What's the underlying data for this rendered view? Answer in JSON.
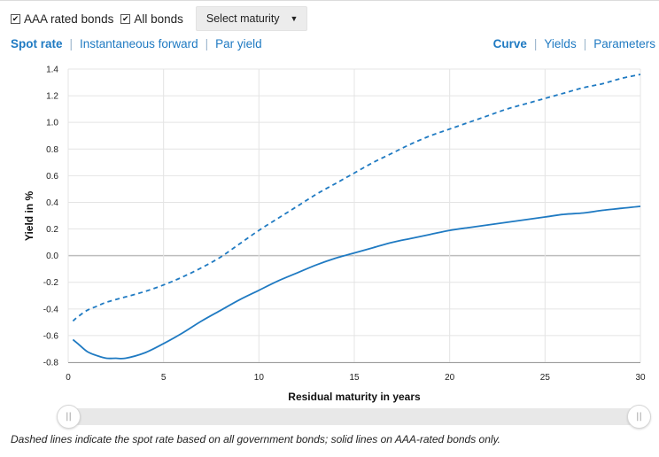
{
  "controls": {
    "checkbox_aaa": {
      "label": "AAA rated bonds",
      "checked": true
    },
    "checkbox_all": {
      "label": "All bonds",
      "checked": true
    },
    "select_maturity": {
      "value": "Select maturity",
      "caret": "▼"
    }
  },
  "tabs_left": [
    {
      "label": "Spot rate",
      "active": true
    },
    {
      "label": "Instantaneous forward",
      "active": false
    },
    {
      "label": "Par yield",
      "active": false
    }
  ],
  "tabs_right": [
    {
      "label": "Curve",
      "active": true
    },
    {
      "label": "Yields",
      "active": false
    },
    {
      "label": "Parameters",
      "active": false
    }
  ],
  "chart_data": {
    "type": "line",
    "xlabel": "Residual maturity in years",
    "ylabel": "Yield in %",
    "xlim": [
      0,
      30
    ],
    "ylim": [
      -0.8,
      1.4
    ],
    "x_ticks": [
      0,
      5,
      10,
      15,
      20,
      25,
      30
    ],
    "y_ticks": [
      -0.8,
      -0.6,
      -0.4,
      -0.2,
      0.0,
      0.2,
      0.4,
      0.6,
      0.8,
      1.0,
      1.2,
      1.4
    ],
    "y_tick_labels": [
      "-0.8",
      "-0.6",
      "-0.4",
      "-0.2",
      "0.0",
      "0.2",
      "0.4",
      "0.6",
      "0.8",
      "1.0",
      "1.2",
      "1.4"
    ],
    "grid": true,
    "line_color": "#1f7ac2",
    "series": [
      {
        "style": "dashed",
        "x": [
          0.25,
          0.5,
          1,
          1.5,
          2,
          3,
          4,
          5,
          6,
          7,
          8,
          9,
          10,
          11,
          12,
          13,
          14,
          15,
          16,
          17,
          18,
          19,
          20,
          21,
          22,
          23,
          24,
          25,
          26,
          27,
          28,
          29,
          30
        ],
        "y": [
          -0.49,
          -0.46,
          -0.41,
          -0.38,
          -0.35,
          -0.31,
          -0.27,
          -0.22,
          -0.16,
          -0.09,
          -0.01,
          0.09,
          0.19,
          0.28,
          0.37,
          0.46,
          0.54,
          0.62,
          0.7,
          0.77,
          0.84,
          0.9,
          0.95,
          1.0,
          1.05,
          1.1,
          1.14,
          1.18,
          1.22,
          1.26,
          1.29,
          1.33,
          1.36
        ]
      },
      {
        "style": "solid",
        "x": [
          0.25,
          0.5,
          1,
          1.5,
          2,
          2.5,
          3,
          4,
          5,
          6,
          7,
          8,
          9,
          10,
          11,
          12,
          13,
          14,
          15,
          16,
          17,
          18,
          19,
          20,
          21,
          22,
          23,
          24,
          25,
          26,
          27,
          28,
          29,
          30
        ],
        "y": [
          -0.63,
          -0.66,
          -0.72,
          -0.75,
          -0.77,
          -0.77,
          -0.77,
          -0.73,
          -0.66,
          -0.58,
          -0.49,
          -0.41,
          -0.33,
          -0.26,
          -0.19,
          -0.13,
          -0.07,
          -0.02,
          0.02,
          0.06,
          0.1,
          0.13,
          0.16,
          0.19,
          0.21,
          0.23,
          0.25,
          0.27,
          0.29,
          0.31,
          0.32,
          0.34,
          0.355,
          0.37
        ]
      }
    ]
  },
  "slider": {
    "left_grip": "||",
    "right_grip": "||"
  },
  "caption": "Dashed lines indicate the spot rate based on all government bonds; solid lines on AAA-rated bonds only."
}
